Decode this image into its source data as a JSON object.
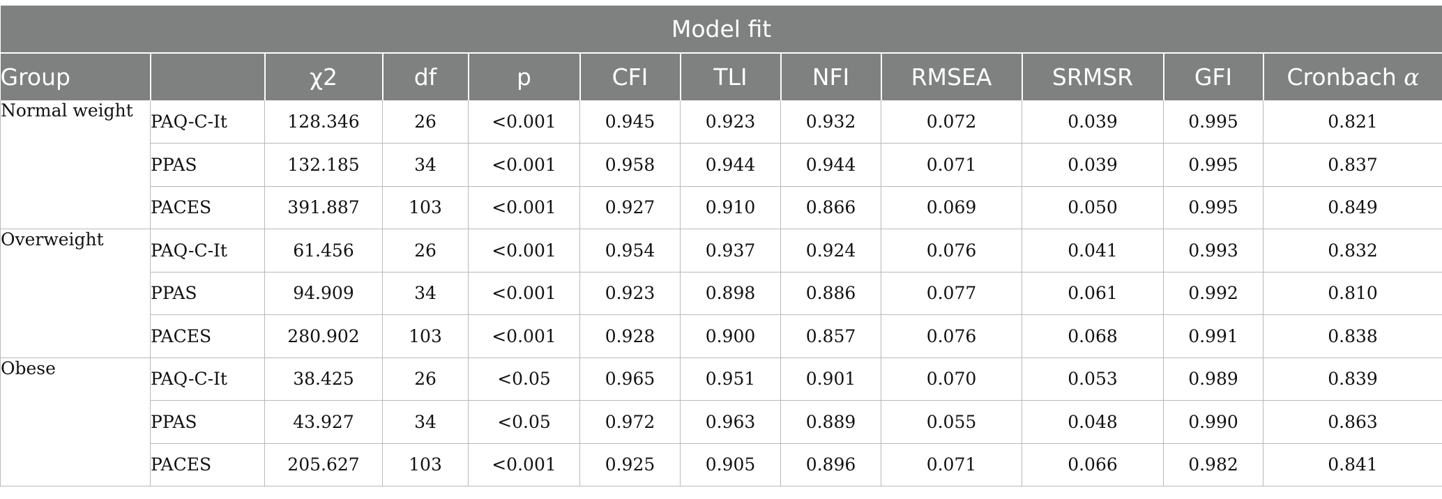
{
  "header": {
    "title": "Model fit",
    "group_label": "Group",
    "measure_label": "",
    "columns": [
      "χ2",
      "df",
      "p",
      "CFI",
      "TLI",
      "NFI",
      "RMSEA",
      "SRMSR",
      "GFI"
    ],
    "cronbach_label": "Cronbach",
    "alpha_symbol": "α"
  },
  "groups": [
    {
      "name": "Normal weight",
      "rows": [
        {
          "measure": "PAQ-C-It",
          "values": [
            "128.346",
            "26",
            "<0.001",
            "0.945",
            "0.923",
            "0.932",
            "0.072",
            "0.039",
            "0.995",
            "0.821"
          ]
        },
        {
          "measure": "PPAS",
          "values": [
            "132.185",
            "34",
            "<0.001",
            "0.958",
            "0.944",
            "0.944",
            "0.071",
            "0.039",
            "0.995",
            "0.837"
          ]
        },
        {
          "measure": "PACES",
          "values": [
            "391.887",
            "103",
            "<0.001",
            "0.927",
            "0.910",
            "0.866",
            "0.069",
            "0.050",
            "0.995",
            "0.849"
          ]
        }
      ]
    },
    {
      "name": "Overweight",
      "rows": [
        {
          "measure": "PAQ-C-It",
          "values": [
            "61.456",
            "26",
            "<0.001",
            "0.954",
            "0.937",
            "0.924",
            "0.076",
            "0.041",
            "0.993",
            "0.832"
          ]
        },
        {
          "measure": "PPAS",
          "values": [
            "94.909",
            "34",
            "<0.001",
            "0.923",
            "0.898",
            "0.886",
            "0.077",
            "0.061",
            "0.992",
            "0.810"
          ]
        },
        {
          "measure": "PACES",
          "values": [
            "280.902",
            "103",
            "<0.001",
            "0.928",
            "0.900",
            "0.857",
            "0.076",
            "0.068",
            "0.991",
            "0.838"
          ]
        }
      ]
    },
    {
      "name": "Obese",
      "rows": [
        {
          "measure": "PAQ-C-It",
          "values": [
            "38.425",
            "26",
            "<0.05",
            "0.965",
            "0.951",
            "0.901",
            "0.070",
            "0.053",
            "0.989",
            "0.839"
          ]
        },
        {
          "measure": "PPAS",
          "values": [
            "43.927",
            "34",
            "<0.05",
            "0.972",
            "0.963",
            "0.889",
            "0.055",
            "0.048",
            "0.990",
            "0.863"
          ]
        },
        {
          "measure": "PACES",
          "values": [
            "205.627",
            "103",
            "<0.001",
            "0.925",
            "0.905",
            "0.896",
            "0.071",
            "0.066",
            "0.982",
            "0.841"
          ]
        }
      ]
    }
  ],
  "colors": {
    "header_bg": "#7f8080",
    "header_text": "#ffffff",
    "grid_line": "#b9b9b9",
    "body_text": "#111111"
  }
}
